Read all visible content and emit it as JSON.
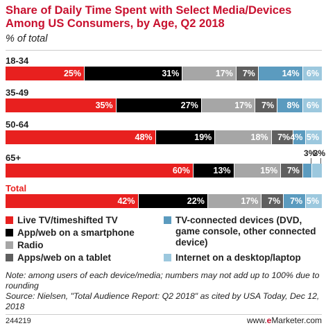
{
  "chart_data": {
    "type": "bar",
    "orientation": "horizontal",
    "stacked": true,
    "title": "Share of Daily Time Spent with Select Media/Devices Among US Consumers, by Age, Q2 2018",
    "subtitle": "% of total",
    "xlim": [
      0,
      100
    ],
    "categories": [
      "18-34",
      "35-49",
      "50-64",
      "65+",
      "Total"
    ],
    "series": [
      {
        "name": "Live TV/timeshifted TV",
        "color": "#e8201f",
        "values": [
          25,
          35,
          48,
          60,
          42
        ]
      },
      {
        "name": "App/web on a smartphone",
        "color": "#000000",
        "values": [
          31,
          27,
          19,
          13,
          22
        ]
      },
      {
        "name": "Radio",
        "color": "#a6a6a6",
        "values": [
          17,
          17,
          18,
          15,
          17
        ]
      },
      {
        "name": "Apps/web on a tablet",
        "color": "#5f5f5f",
        "values": [
          7,
          7,
          7,
          7,
          7
        ]
      },
      {
        "name": "TV-connected devices (DVD, game console, other connected device)",
        "color": "#5b9bbf",
        "values": [
          14,
          8,
          4,
          3,
          7
        ]
      },
      {
        "name": "Internet on a desktop/laptop",
        "color": "#9cc8de",
        "values": [
          6,
          6,
          5,
          3,
          5
        ]
      }
    ],
    "label_suffix": "%",
    "legend_position": "bottom"
  },
  "callouts": [
    "3%",
    "3%"
  ],
  "legend": [
    {
      "label": "Live TV/timeshifted TV",
      "color": "#e8201f"
    },
    {
      "label": "App/web on a smartphone",
      "color": "#000000"
    },
    {
      "label": "Radio",
      "color": "#a6a6a6"
    },
    {
      "label": "Apps/web on a tablet",
      "color": "#5f5f5f"
    },
    {
      "label": "TV-connected devices (DVD, game console, other connected device)",
      "color": "#5b9bbf"
    },
    {
      "label": "Internet on a desktop/laptop",
      "color": "#9cc8de"
    }
  ],
  "footer": {
    "note": "Note: among users of each device/media; numbers may not add up to 100% due to rounding",
    "source": "Source: Nielsen, \"Total Audience Report: Q2 2018\" as cited by USA Today, Dec 12, 2018",
    "chart_id": "244219",
    "brand_prefix": "www.",
    "brand_e": "e",
    "brand_suffix": "Marketer.com"
  }
}
